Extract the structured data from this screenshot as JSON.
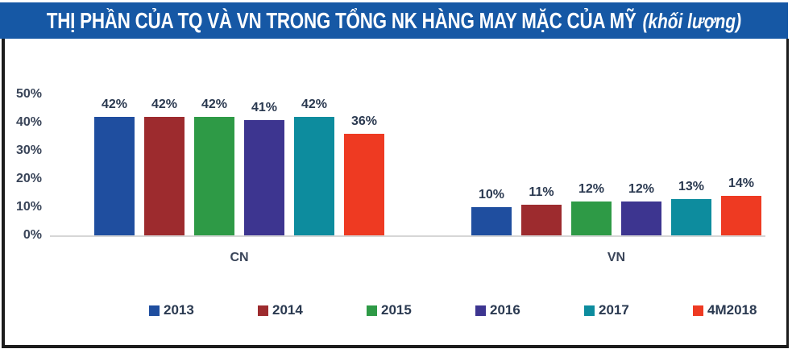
{
  "header": {
    "title": "THỊ PHẦN CỦA TQ VÀ VN TRONG TỔNG NK HÀNG MAY MẶC CỦA MỸ",
    "subtitle": "(khối lượng)"
  },
  "colors": {
    "header_bg": "#1658A5",
    "header_text": "#FFFFFF",
    "frame_border": "#1C1C1C",
    "axis_text": "#3A4559",
    "data_label_text": "#2A3950",
    "baseline": "#D6D6D6"
  },
  "chart_data": {
    "type": "bar",
    "title": "THỊ PHẦN CỦA TQ VÀ VN TRONG TỔNG NK HÀNG MAY MẶC CỦA MỸ (khối lượng)",
    "categories": [
      "CN",
      "VN"
    ],
    "series": [
      {
        "name": "2013",
        "color": "#1F4E9F",
        "values": [
          42,
          10
        ]
      },
      {
        "name": "2014",
        "color": "#9D2B2E",
        "values": [
          42,
          11
        ]
      },
      {
        "name": "2015",
        "color": "#2E9A46",
        "values": [
          42,
          12
        ]
      },
      {
        "name": "2016",
        "color": "#3D3590",
        "values": [
          41,
          12
        ]
      },
      {
        "name": "2017",
        "color": "#0D8C9E",
        "values": [
          42,
          13
        ]
      },
      {
        "name": "4M2018",
        "color": "#EE3A22",
        "values": [
          36,
          14
        ]
      }
    ],
    "data_labels": true,
    "data_label_format": "{v}%",
    "y_ticks": [
      {
        "value": 0,
        "label": "0%"
      },
      {
        "value": 10,
        "label": "10%"
      },
      {
        "value": 20,
        "label": "20%"
      },
      {
        "value": 30,
        "label": "30%"
      },
      {
        "value": 40,
        "label": "40%"
      },
      {
        "value": 50,
        "label": "50%"
      }
    ],
    "ylim": [
      0,
      50
    ],
    "grid": false,
    "legend_position": "bottom",
    "legend": [
      "2013",
      "2014",
      "2015",
      "2016",
      "2017",
      "4M2018"
    ]
  }
}
